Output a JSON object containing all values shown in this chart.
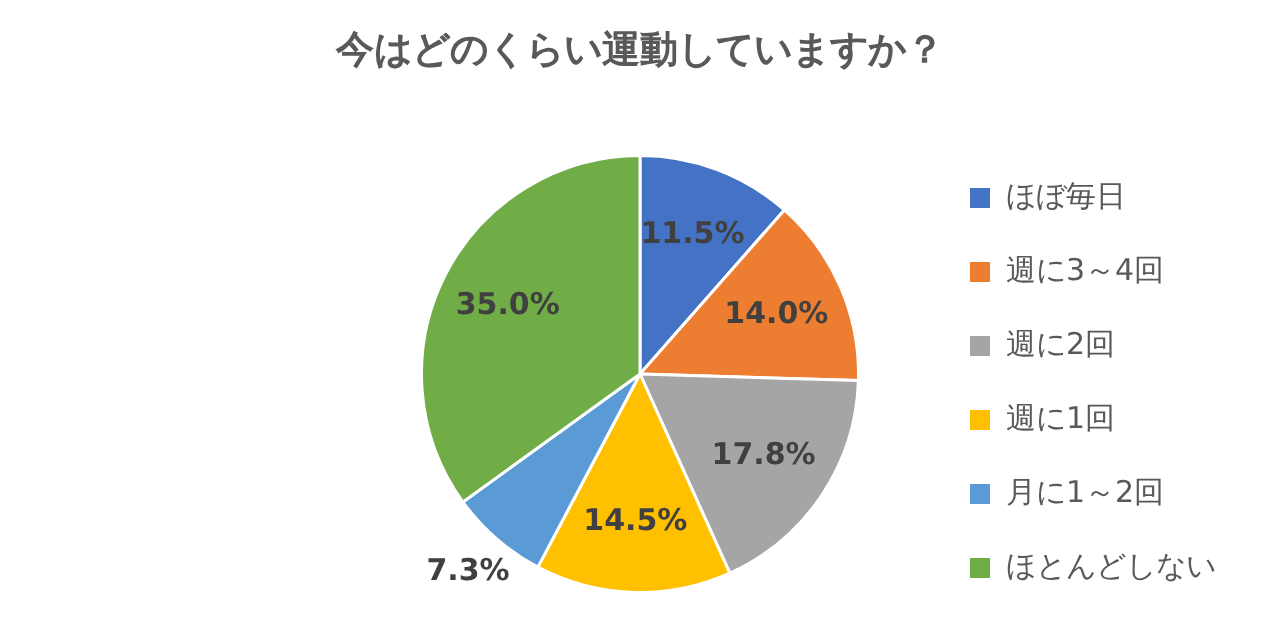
{
  "chart_data": {
    "type": "pie",
    "title": "今はどのくらい運動していますか？",
    "categories": [
      "ほぼ毎日",
      "週に3～4回",
      "週に2回",
      "週に1回",
      "月に1～2回",
      "ほとんどしない"
    ],
    "values": [
      11.5,
      14.0,
      17.8,
      14.5,
      7.3,
      35.0
    ],
    "value_labels": [
      "11.5%",
      "14.0%",
      "17.8%",
      "14.5%",
      "7.3%",
      "35.0%"
    ],
    "colors": [
      "#4472c4",
      "#ed7d31",
      "#a5a5a5",
      "#ffc000",
      "#5b9bd5",
      "#70ad47"
    ],
    "legend": "right"
  }
}
